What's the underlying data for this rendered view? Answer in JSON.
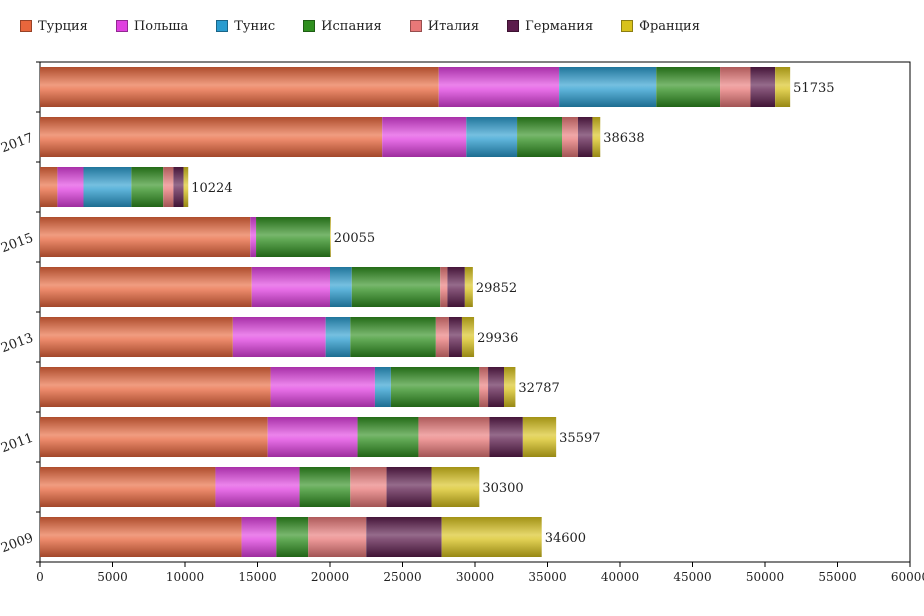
{
  "chart_data": {
    "type": "bar",
    "orientation": "horizontal",
    "stacked": true,
    "legend_position": "top-left",
    "grid": false,
    "xlim": [
      0,
      60000
    ],
    "x_ticks": [
      "0",
      "5000",
      "10000",
      "15000",
      "20000",
      "25000",
      "30000",
      "35000",
      "40000",
      "45000",
      "50000",
      "55000",
      "60000"
    ],
    "y_tick_labels": [
      {
        "label": "2009",
        "row": 0
      },
      {
        "label": "2011",
        "row": 2
      },
      {
        "label": "2013",
        "row": 4
      },
      {
        "label": "2015",
        "row": 6
      },
      {
        "label": "2017",
        "row": 8
      }
    ],
    "row_totals": [
      "34600",
      "30300",
      "35597",
      "32787",
      "29936",
      "29852",
      "20055",
      "10224",
      "38638",
      "51735"
    ],
    "series": [
      {
        "name": "Турция",
        "color": "#e8663c",
        "values": [
          13900,
          12100,
          15700,
          15900,
          13300,
          14600,
          14500,
          1200,
          23600,
          27500
        ]
      },
      {
        "name": "Польша",
        "color": "#e040e0",
        "values": [
          2400,
          5800,
          6200,
          7200,
          6400,
          5400,
          400,
          1800,
          5800,
          8300
        ]
      },
      {
        "name": "Тунис",
        "color": "#2a9ccf",
        "values": [
          0,
          0,
          0,
          1100,
          1700,
          1500,
          0,
          3300,
          3500,
          6700
        ]
      },
      {
        "name": "Испания",
        "color": "#2f8f1f",
        "values": [
          2200,
          3500,
          4200,
          6100,
          5900,
          6100,
          5100,
          2200,
          3100,
          4400
        ]
      },
      {
        "name": "Италия",
        "color": "#e87878",
        "values": [
          4000,
          2500,
          4900,
          600,
          900,
          500,
          0,
          700,
          1100,
          2100
        ]
      },
      {
        "name": "Германия",
        "color": "#5c1c4c",
        "values": [
          5200,
          3100,
          2300,
          1100,
          900,
          1200,
          0,
          700,
          1000,
          1700
        ]
      },
      {
        "name": "Франция",
        "color": "#d8c21c",
        "values": [
          6900,
          3300,
          2297,
          787,
          836,
          552,
          55,
          324,
          538,
          1035
        ]
      }
    ]
  }
}
